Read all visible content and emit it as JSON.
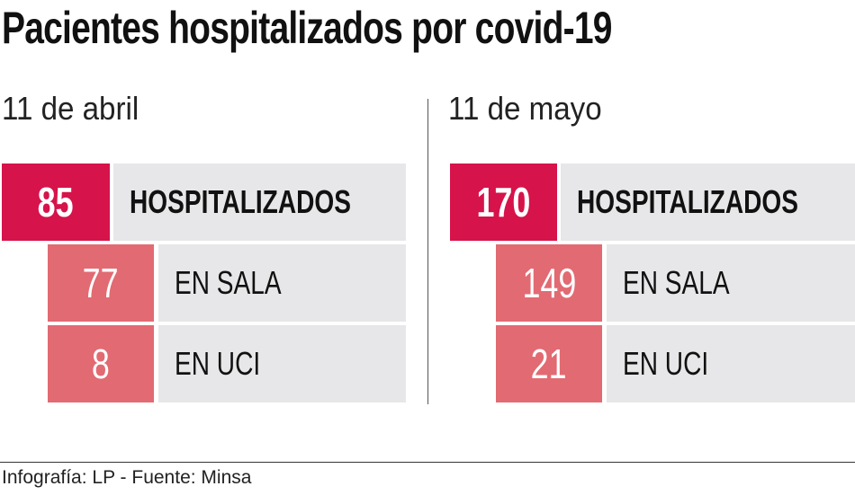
{
  "title": "Pacientes hospitalizados por covid-19",
  "colors": {
    "hospitalizados": "#d6134a",
    "sub": "#e26a72",
    "label_bg": "#e7e7e9"
  },
  "chart_data": {
    "type": "table",
    "title": "Pacientes hospitalizados por covid-19",
    "panels": [
      {
        "date": "11 de abril",
        "total": {
          "value": "85",
          "label": "HOSPITALIZADOS"
        },
        "rows": [
          {
            "value": "77",
            "label": "EN SALA"
          },
          {
            "value": "8",
            "label": "EN UCI"
          }
        ]
      },
      {
        "date": "11 de mayo",
        "total": {
          "value": "170",
          "label": "HOSPITALIZADOS"
        },
        "rows": [
          {
            "value": "149",
            "label": "EN SALA"
          },
          {
            "value": "21",
            "label": "EN UCI"
          }
        ]
      }
    ]
  },
  "footer": "Infografía: LP - Fuente: Minsa"
}
